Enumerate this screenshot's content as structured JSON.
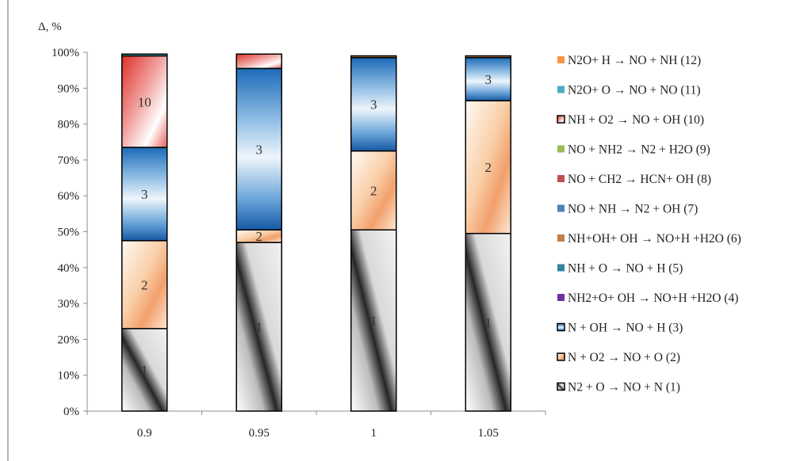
{
  "chart_data": {
    "type": "bar",
    "stacked": true,
    "percent": true,
    "ylabel": "Δ, %",
    "ylim": [
      0,
      100
    ],
    "yticks": [
      "0%",
      "10%",
      "20%",
      "30%",
      "40%",
      "50%",
      "60%",
      "70%",
      "80%",
      "90%",
      "100%"
    ],
    "categories": [
      "0.9",
      "0.95",
      "1",
      "1.05"
    ],
    "series": [
      {
        "id": "1",
        "name": "N2 +   O → NO +   N (1)",
        "color": "#7a7a7a",
        "values": [
          23.0,
          47.0,
          50.5,
          49.5
        ]
      },
      {
        "id": "2",
        "name": "N  + O2 → NO +   O (2)",
        "color": "#f4b183",
        "values": [
          24.5,
          3.5,
          22.0,
          37.0
        ]
      },
      {
        "id": "3",
        "name": "N  + OH → NO +   H (3)",
        "color": "#2e75b6",
        "values": [
          26.0,
          45.0,
          26.0,
          12.0
        ]
      },
      {
        "id": "4",
        "name": "NH2+O+ OH → NO+H +H2O (4)",
        "color": "#7030a0",
        "values": [
          0,
          0,
          0,
          0
        ]
      },
      {
        "id": "5",
        "name": "NH +   O → NO +   H (5)",
        "color": "#31849b",
        "values": [
          0,
          0,
          0,
          0
        ]
      },
      {
        "id": "6",
        "name": "NH+OH+ OH → NO+H +H2O (6)",
        "color": "#c0804d",
        "values": [
          0,
          0,
          0.5,
          0.5
        ]
      },
      {
        "id": "7",
        "name": "NO + NH → N2 + OH (7)",
        "color": "#4f81bd",
        "values": [
          0,
          0,
          0,
          0
        ]
      },
      {
        "id": "8",
        "name": "NO + CH2 → HCN+ OH (8)",
        "color": "#c0504d",
        "values": [
          0,
          0,
          0,
          0
        ]
      },
      {
        "id": "9",
        "name": "NO + NH2 → N2 + H2O (9)",
        "color": "#9bbb59",
        "values": [
          0,
          0,
          0,
          0
        ]
      },
      {
        "id": "10",
        "name": "NH + O2 → NO + OH (10)",
        "color": "#e0302a",
        "values": [
          25.5,
          4.0,
          0,
          0
        ]
      },
      {
        "id": "11",
        "name": "N2O+  O → NO + NO (11)",
        "color": "#4bacc6",
        "values": [
          0.5,
          0,
          0,
          0
        ]
      },
      {
        "id": "12",
        "name": "N2O+  H → NO + NH (12)",
        "color": "#f79646",
        "values": [
          0,
          0,
          0,
          0
        ]
      }
    ],
    "segment_labels": {
      "0.9": [
        "1",
        "2",
        "3",
        "10"
      ],
      "0.95": [
        "1",
        "2",
        "3"
      ],
      "1": [
        "1",
        "2",
        "3"
      ],
      "1.05": [
        "1",
        "2",
        "3"
      ]
    },
    "legend_position": "right",
    "legend_order": [
      "12",
      "11",
      "10",
      "9",
      "8",
      "7",
      "6",
      "5",
      "4",
      "3",
      "2",
      "1"
    ],
    "grid": false
  }
}
